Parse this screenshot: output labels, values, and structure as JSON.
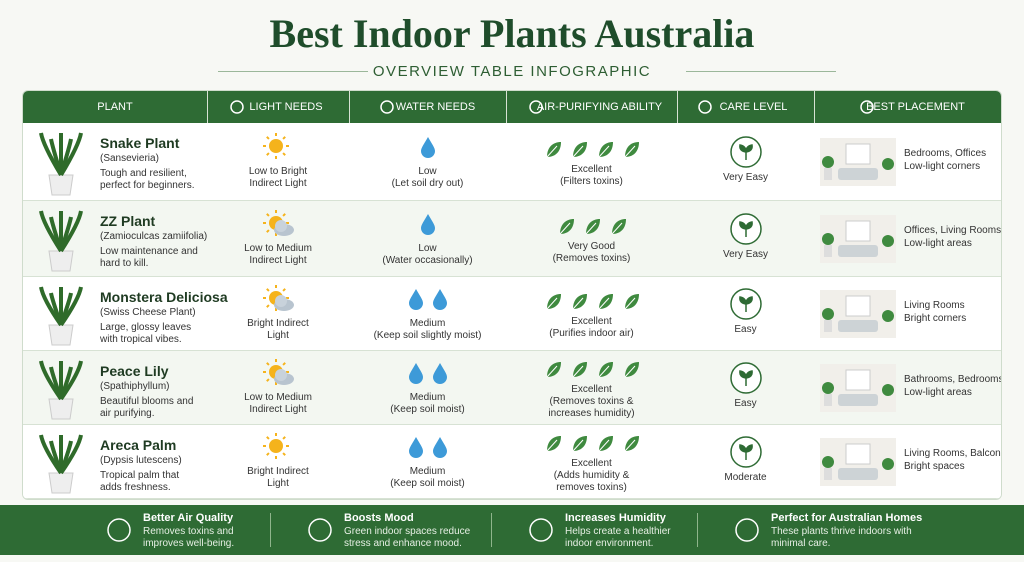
{
  "title": "Best Indoor Plants Australia",
  "subtitle": "OVERVIEW TABLE INFOGRAPHIC",
  "headers": [
    "PLANT",
    "LIGHT NEEDS",
    "WATER NEEDS",
    "AIR-PURIFYING ABILITY",
    "CARE LEVEL",
    "BEST PLACEMENT"
  ],
  "rows": [
    {
      "name": "Snake Plant",
      "scientific": "(Sansevieria)",
      "description": [
        "Tough and resilient,",
        "perfect for beginners."
      ],
      "light": [
        "Low to Bright",
        "Indirect Light"
      ],
      "drops": 1,
      "water": [
        "Low",
        "(Let soil dry out)"
      ],
      "leaves": 4,
      "air": [
        "Excellent",
        "(Filters toxins)"
      ],
      "care": "Very Easy",
      "placement": [
        "Bedrooms, Offices",
        "Low-light corners"
      ]
    },
    {
      "name": "ZZ Plant",
      "scientific": "(Zamioculcas zamiifolia)",
      "description": [
        "Low maintenance and",
        "hard to kill."
      ],
      "light": [
        "Low to Medium",
        "Indirect Light"
      ],
      "drops": 1,
      "water": [
        "Low",
        "(Water occasionally)"
      ],
      "leaves": 3,
      "air": [
        "Very Good",
        "(Removes toxins)"
      ],
      "care": "Very Easy",
      "placement": [
        "Offices, Living Rooms",
        "Low-light areas"
      ]
    },
    {
      "name": "Monstera Deliciosa",
      "scientific": "(Swiss Cheese Plant)",
      "description": [
        "Large, glossy leaves",
        "with tropical vibes."
      ],
      "light": [
        "Bright Indirect",
        "Light"
      ],
      "drops": 2,
      "water": [
        "Medium",
        "(Keep soil slightly moist)"
      ],
      "leaves": 4,
      "air": [
        "Excellent",
        "(Purifies indoor air)"
      ],
      "care": "Easy",
      "placement": [
        "Living Rooms",
        "Bright corners"
      ]
    },
    {
      "name": "Peace Lily",
      "scientific": "(Spathiphyllum)",
      "description": [
        "Beautiful blooms and",
        "air purifying."
      ],
      "light": [
        "Low to Medium",
        "Indirect Light"
      ],
      "drops": 2,
      "water": [
        "Medium",
        "(Keep soil moist)"
      ],
      "leaves": 4,
      "air": [
        "Excellent",
        "(Removes toxins &",
        "increases humidity)"
      ],
      "care": "Easy",
      "placement": [
        "Bathrooms, Bedrooms",
        "Low-light areas"
      ]
    },
    {
      "name": "Areca Palm",
      "scientific": "(Dypsis lutescens)",
      "description": [
        "Tropical palm that",
        "adds freshness."
      ],
      "light": [
        "Bright Indirect",
        "Light"
      ],
      "drops": 2,
      "water": [
        "Medium",
        "(Keep soil moist)"
      ],
      "leaves": 4,
      "air": [
        "Excellent",
        "(Adds humidity &",
        "removes toxins)"
      ],
      "care": "Moderate",
      "placement": [
        "Living Rooms, Balconies",
        "Bright spaces"
      ]
    }
  ],
  "footer": [
    {
      "title": "Better Air Quality",
      "text": [
        "Removes toxins and",
        "improves well-being."
      ]
    },
    {
      "title": "Boosts Mood",
      "text": [
        "Green indoor spaces reduce",
        "stress and enhance mood."
      ]
    },
    {
      "title": "Increases Humidity",
      "text": [
        "Helps create a healthier",
        "indoor environment."
      ]
    },
    {
      "title": "Perfect for Australian Homes",
      "text": [
        "These plants thrive indoors with",
        "minimal care."
      ]
    }
  ]
}
